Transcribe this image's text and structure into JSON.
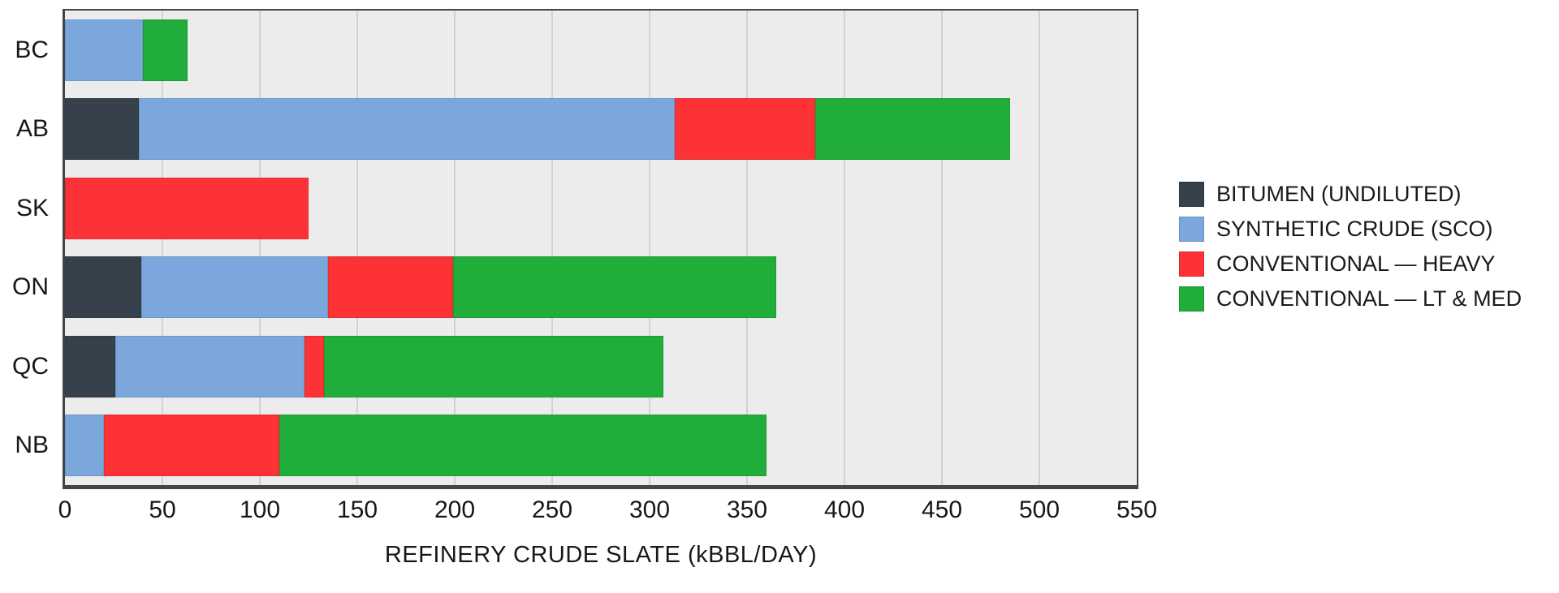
{
  "chart_data": {
    "type": "bar",
    "orientation": "horizontal",
    "stacked": true,
    "categories": [
      "BC",
      "AB",
      "SK",
      "ON",
      "QC",
      "NB"
    ],
    "series": [
      {
        "name": "BITUMEN (UNDILUTED)",
        "color": "#37414b",
        "values": [
          0,
          38,
          0,
          39,
          26,
          0
        ]
      },
      {
        "name": "SYNTHETIC CRUDE (SCO)",
        "color": "#7ba7dd",
        "values": [
          40,
          275,
          0,
          96,
          97,
          20
        ]
      },
      {
        "name": "CONVENTIONAL — HEAVY",
        "color": "#fc3237",
        "values": [
          0,
          72,
          125,
          64,
          10,
          90
        ]
      },
      {
        "name": "CONVENTIONAL — LT & MED",
        "color": "#21ad3a",
        "values": [
          23,
          100,
          0,
          166,
          174,
          250
        ]
      }
    ],
    "totals": [
      63,
      485,
      125,
      365,
      307,
      360
    ],
    "xlabel": "REFINERY CRUDE SLATE (kBBL/DAY)",
    "xlim": [
      0,
      550
    ],
    "xticks": [
      0,
      50,
      100,
      150,
      200,
      250,
      300,
      350,
      400,
      450,
      500,
      550
    ],
    "grid": true,
    "legend_position": "right"
  },
  "colors": {
    "canvas_bg": "#ffffff",
    "plot_bg": "#ececec",
    "gridline": "#d2d2d2",
    "frame": "#40454a",
    "text": "#15181b"
  }
}
